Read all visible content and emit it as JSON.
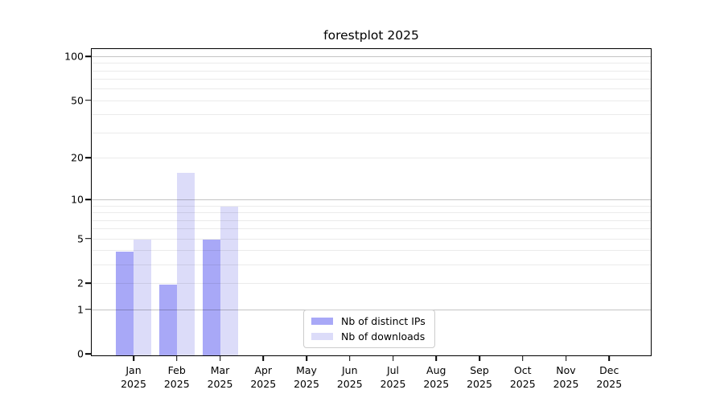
{
  "figure": {
    "background": "#ffffff"
  },
  "chart_data": {
    "type": "bar",
    "title": "forestplot 2025",
    "categories": [
      "Jan 2025",
      "Feb 2025",
      "Mar 2025",
      "Apr 2025",
      "May 2025",
      "Jun 2025",
      "Jul 2025",
      "Aug 2025",
      "Sep 2025",
      "Oct 2025",
      "Nov 2025",
      "Dec 2025"
    ],
    "x_month_labels": [
      "Jan",
      "Feb",
      "Mar",
      "Apr",
      "May",
      "Jun",
      "Jul",
      "Aug",
      "Sep",
      "Oct",
      "Nov",
      "Dec"
    ],
    "x_year_label": "2025",
    "series": [
      {
        "name": "Nb of distinct IPs",
        "color": "#a8a8f7",
        "values": [
          4,
          2,
          5,
          0,
          0,
          0,
          0,
          0,
          0,
          0,
          0,
          0
        ]
      },
      {
        "name": "Nb of downloads",
        "color": "#dcdcf9",
        "values": [
          5,
          16,
          9,
          0,
          0,
          0,
          0,
          0,
          0,
          0,
          0,
          0
        ]
      }
    ],
    "yscale": "log1p",
    "ylim": [
      0,
      112
    ],
    "yticks": [
      0,
      1,
      2,
      5,
      10,
      20,
      50,
      100
    ],
    "grid": {
      "major_values": [
        1,
        10,
        100
      ],
      "minor_values": [
        2,
        3,
        4,
        5,
        6,
        7,
        8,
        9,
        20,
        30,
        40,
        50,
        60,
        70,
        80,
        90
      ],
      "major_color": "rgba(0,0,0,0.23)",
      "minor_color": "rgba(0,0,0,0.08)"
    },
    "legend": {
      "position": "lower-center",
      "entries": [
        "Nb of distinct IPs",
        "Nb of downloads"
      ]
    }
  }
}
